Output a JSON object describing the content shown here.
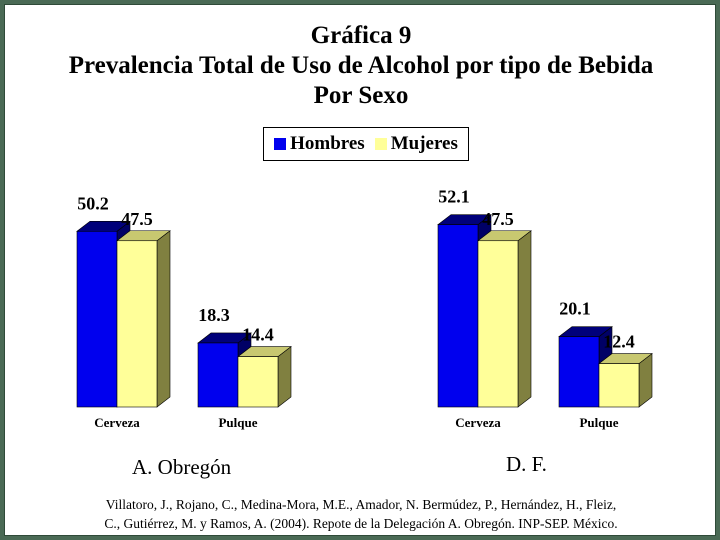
{
  "title_lines": [
    "Gráfica 9",
    "Prevalencia Total de Uso de Alcohol por tipo de Bebida",
    "Por Sexo"
  ],
  "legend": [
    {
      "label": "Hombres",
      "color": "#0000ee"
    },
    {
      "label": "Mujeres",
      "color": "#ffff99"
    }
  ],
  "chart_data": [
    {
      "type": "bar",
      "title": "A. Obregón",
      "categories": [
        "Cerveza",
        "Pulque"
      ],
      "series": [
        {
          "name": "Hombres",
          "values": [
            50.2,
            18.3
          ],
          "labels": [
            "50.2",
            "18.3"
          ]
        },
        {
          "name": "Mujeres",
          "values": [
            47.5,
            14.4
          ],
          "labels": [
            "47.5",
            "14.4"
          ]
        }
      ],
      "ylim": [
        0,
        60
      ],
      "grid": false,
      "legend": "top"
    },
    {
      "type": "bar",
      "title": "D. F.",
      "categories": [
        "Cerveza",
        "Pulque"
      ],
      "series": [
        {
          "name": "Hombres",
          "values": [
            52.1,
            20.1
          ],
          "labels": [
            "52.1",
            "20.1"
          ]
        },
        {
          "name": "Mujeres",
          "values": [
            47.5,
            12.4
          ],
          "labels": [
            "47.5",
            "12.4"
          ]
        }
      ],
      "ylim": [
        0,
        60
      ],
      "grid": false,
      "legend": "top"
    }
  ],
  "citation_lines": [
    "Villatoro, J., Rojano, C., Medina-Mora, M.E., Amador, N. Bermúdez, P., Hernández, H., Fleiz,",
    "C., Gutiérrez, M. y Ramos, A. (2004). Repote de la Delegación A. Obregón. INP-SEP. México."
  ],
  "colors": {
    "hombres_front": "#0000ee",
    "hombres_top": "#00007a",
    "hombres_side": "#000066",
    "mujeres_front": "#ffff99",
    "mujeres_top": "#c8c870",
    "mujeres_side": "#808040"
  }
}
